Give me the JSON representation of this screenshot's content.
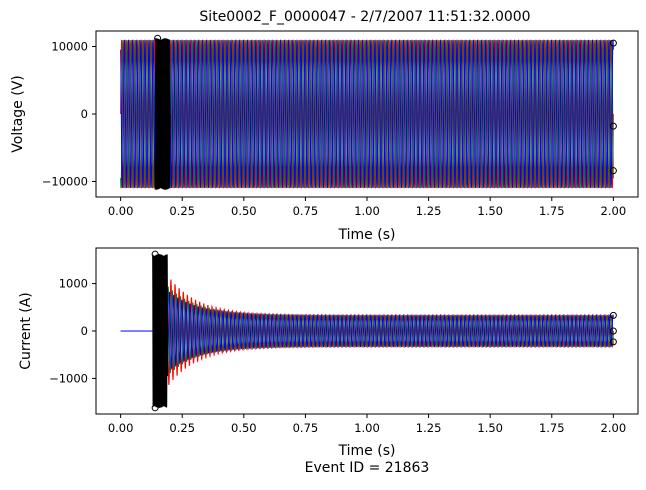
{
  "figure": {
    "title": "Site0002_F_0000047 - 2/7/2007 11:51:32.0000",
    "footer": "Event ID = 21863"
  },
  "chart_data": [
    {
      "type": "line",
      "xlabel": "Time (s)",
      "ylabel": "Voltage (V)",
      "xlim": [
        -0.1,
        2.1
      ],
      "ylim": [
        -12300,
        12300
      ],
      "xticks": [
        0.0,
        0.25,
        0.5,
        0.75,
        1.0,
        1.25,
        1.5,
        1.75,
        2.0
      ],
      "xtick_labels": [
        "0.00",
        "0.25",
        "0.50",
        "0.75",
        "1.00",
        "1.25",
        "1.50",
        "1.75",
        "2.00"
      ],
      "yticks": [
        -10000,
        0,
        10000
      ],
      "ytick_labels": [
        "−10000",
        "0",
        "10000"
      ],
      "frequency_hz": 60,
      "duration_s": 2.0,
      "amplitude": 11000,
      "event_time_s": 0.15,
      "series": [
        {
          "color": "#ff0000",
          "phase_deg": 0
        },
        {
          "color": "#008000",
          "phase_deg": -120
        },
        {
          "color": "#0000ff",
          "phase_deg": 120
        }
      ],
      "end_markers": [
        10500,
        -1800,
        -8400
      ],
      "grid": false
    },
    {
      "type": "line",
      "xlabel": "Time (s)",
      "ylabel": "Current (A)",
      "xlim": [
        -0.1,
        2.1
      ],
      "ylim": [
        -1750,
        1750
      ],
      "xticks": [
        0.0,
        0.25,
        0.5,
        0.75,
        1.0,
        1.25,
        1.5,
        1.75,
        2.0
      ],
      "xtick_labels": [
        "0.00",
        "0.25",
        "0.50",
        "0.75",
        "1.00",
        "1.25",
        "1.50",
        "1.75",
        "2.00"
      ],
      "yticks": [
        -1000,
        0,
        1000
      ],
      "ytick_labels": [
        "−1000",
        "0",
        "1000"
      ],
      "frequency_hz": 60,
      "duration_s": 2.0,
      "event_time_s": 0.14,
      "clip_level": 1620,
      "steady_amplitude": 330,
      "peak_amplitude": 1620,
      "decay_tau_s": 0.12,
      "series": [
        {
          "color": "#ff0000",
          "phase_deg": 0,
          "peak_scale": 1.0
        },
        {
          "color": "#008000",
          "phase_deg": -120,
          "peak_scale": 0.78
        },
        {
          "color": "#0000ff",
          "phase_deg": 120,
          "peak_scale": 0.7
        }
      ],
      "end_markers": [
        330,
        0,
        -230
      ],
      "grid": false
    }
  ]
}
